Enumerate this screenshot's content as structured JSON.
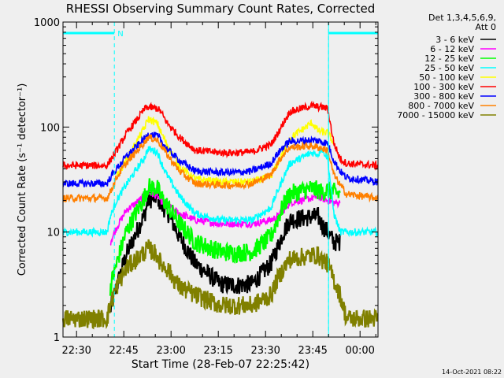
{
  "chart_data": {
    "type": "line",
    "title": "RHESSI Observing Summary Count Rates, Corrected",
    "xlabel": "Start Time (28-Feb-07 22:25:42)",
    "ylabel": "Corrected Count Rate (s⁻¹ detector⁻¹)",
    "yscale": "log",
    "ylim": [
      1,
      1000
    ],
    "xlim_minutes_after_22_25_42": [
      0,
      100
    ],
    "x_ticks": [
      "22:30",
      "22:45",
      "23:00",
      "23:15",
      "23:30",
      "23:45",
      "00:00"
    ],
    "y_ticks": [
      "1",
      "10",
      "100",
      "1000"
    ],
    "legend_header": [
      "Det 1,3,4,5,6,9,",
      "Att 0"
    ],
    "legend_position": "right",
    "night_marker_label": "N",
    "night_intervals_minutes": [
      [
        0,
        16.3
      ],
      [
        84.3,
        100
      ]
    ],
    "flare_marker_minute": 84.3,
    "footer_date": "14-Oct-2021 08:22",
    "x_profile_minutes": [
      0,
      14,
      15,
      17,
      20,
      26,
      27,
      30,
      31,
      33,
      37,
      42,
      50,
      55,
      60,
      66,
      68,
      70,
      72,
      79,
      81,
      82,
      84,
      86,
      88,
      90,
      100
    ],
    "series": [
      {
        "name": "3 - 6 keV",
        "color": "#000000",
        "values": [
          null,
          null,
          1.8,
          3,
          6,
          15,
          20,
          22,
          18,
          16,
          9,
          5,
          3.2,
          3.1,
          3.2,
          5,
          7,
          10,
          13,
          14,
          14,
          12,
          10,
          8,
          8,
          null,
          null
        ]
      },
      {
        "name": "6 - 12 keV",
        "color": "#ff00ff",
        "values": [
          null,
          null,
          8,
          11,
          16,
          22,
          24,
          22,
          20,
          18,
          15,
          13,
          12,
          12,
          12,
          13,
          14,
          16,
          19,
          21,
          22,
          21,
          20,
          19,
          19,
          null,
          null
        ]
      },
      {
        "name": "12 - 25 keV",
        "color": "#00ff00",
        "values": [
          null,
          null,
          3,
          5,
          10,
          22,
          27,
          26,
          22,
          18,
          12,
          8,
          6.5,
          6.3,
          6.5,
          9,
          13,
          18,
          23,
          26,
          25,
          24,
          25,
          24,
          23,
          null,
          null
        ]
      },
      {
        "name": "25 - 50 keV",
        "color": "#00ffff",
        "values": [
          10,
          10,
          14,
          20,
          28,
          52,
          62,
          58,
          47,
          35,
          22,
          15,
          13,
          13,
          13,
          17,
          24,
          33,
          45,
          57,
          55,
          63,
          51,
          15,
          10,
          10,
          10
        ]
      },
      {
        "name": "50 - 100 keV",
        "color": "#ffff00",
        "values": [
          null,
          null,
          null,
          34,
          48,
          100,
          120,
          108,
          90,
          68,
          42,
          32,
          30,
          30,
          30,
          34,
          44,
          58,
          78,
          110,
          92,
          90,
          88,
          70,
          null,
          null,
          null
        ]
      },
      {
        "name": "100 - 300 keV",
        "color": "#ff0000",
        "values": [
          43,
          43,
          48,
          60,
          85,
          150,
          155,
          150,
          140,
          110,
          80,
          60,
          57,
          57,
          58,
          68,
          85,
          110,
          140,
          160,
          155,
          155,
          150,
          70,
          50,
          45,
          43
        ]
      },
      {
        "name": "300 - 800 keV",
        "color": "#0000ff",
        "values": [
          29,
          29,
          33,
          40,
          52,
          78,
          85,
          82,
          75,
          62,
          48,
          38,
          37,
          37,
          38,
          45,
          55,
          65,
          73,
          75,
          74,
          73,
          70,
          48,
          38,
          33,
          30
        ]
      },
      {
        "name": "800 - 7000 keV",
        "color": "#ff8000",
        "values": [
          21,
          21,
          24,
          33,
          45,
          72,
          80,
          75,
          68,
          55,
          38,
          29,
          28,
          28,
          29,
          35,
          45,
          55,
          64,
          66,
          64,
          63,
          60,
          35,
          28,
          23,
          21
        ]
      },
      {
        "name": "7000 - 15000 keV",
        "color": "#808000",
        "values": [
          1.5,
          1.5,
          2,
          3,
          4.5,
          6.5,
          7,
          6,
          5,
          4.5,
          3,
          2.5,
          2,
          2,
          2,
          2.5,
          3.5,
          4.5,
          5.5,
          6,
          6,
          5.5,
          5,
          3.5,
          2.5,
          1.5,
          1.5
        ]
      }
    ]
  }
}
